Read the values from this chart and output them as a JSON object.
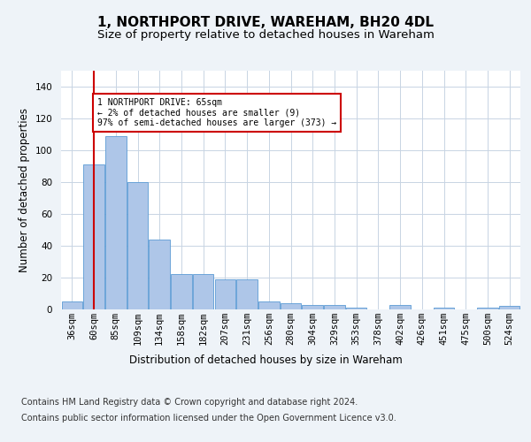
{
  "title": "1, NORTHPORT DRIVE, WAREHAM, BH20 4DL",
  "subtitle": "Size of property relative to detached houses in Wareham",
  "xlabel": "Distribution of detached houses by size in Wareham",
  "ylabel": "Number of detached properties",
  "bar_labels": [
    "36sqm",
    "60sqm",
    "85sqm",
    "109sqm",
    "134sqm",
    "158sqm",
    "182sqm",
    "207sqm",
    "231sqm",
    "256sqm",
    "280sqm",
    "304sqm",
    "329sqm",
    "353sqm",
    "378sqm",
    "402sqm",
    "426sqm",
    "451sqm",
    "475sqm",
    "500sqm",
    "524sqm"
  ],
  "bar_values": [
    5,
    91,
    109,
    80,
    44,
    22,
    22,
    19,
    19,
    5,
    4,
    3,
    3,
    1,
    0,
    3,
    0,
    1,
    0,
    1,
    2
  ],
  "bar_color": "#aec6e8",
  "bar_edge_color": "#5b9bd5",
  "vline_x": 1,
  "vline_color": "#cc0000",
  "annotation_box_text": "1 NORTHPORT DRIVE: 65sqm\n← 2% of detached houses are smaller (9)\n97% of semi-detached houses are larger (373) →",
  "ylim": [
    0,
    150
  ],
  "yticks": [
    0,
    20,
    40,
    60,
    80,
    100,
    120,
    140
  ],
  "bg_color": "#eef3f8",
  "plot_bg_color": "#ffffff",
  "grid_color": "#c8d4e3",
  "footer_line1": "Contains HM Land Registry data © Crown copyright and database right 2024.",
  "footer_line2": "Contains public sector information licensed under the Open Government Licence v3.0.",
  "title_fontsize": 11,
  "subtitle_fontsize": 9.5,
  "label_fontsize": 8.5,
  "tick_fontsize": 7.5,
  "footer_fontsize": 7
}
